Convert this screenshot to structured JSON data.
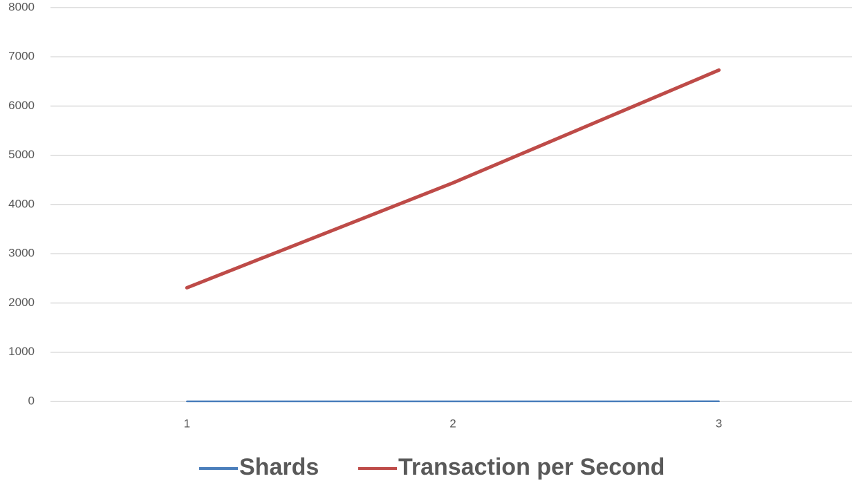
{
  "chart_data": {
    "type": "line",
    "categories": [
      "1",
      "2",
      "3"
    ],
    "series": [
      {
        "name": "Shards",
        "color": "#4a7ebb",
        "values": [
          1,
          2,
          3
        ]
      },
      {
        "name": "Transaction per Second",
        "color": "#be4b48",
        "values": [
          2310,
          4440,
          6730
        ]
      }
    ],
    "ylim": [
      0,
      8000
    ],
    "yticks": [
      0,
      1000,
      2000,
      3000,
      4000,
      5000,
      6000,
      7000,
      8000
    ],
    "grid": true,
    "legend": "bottom"
  }
}
